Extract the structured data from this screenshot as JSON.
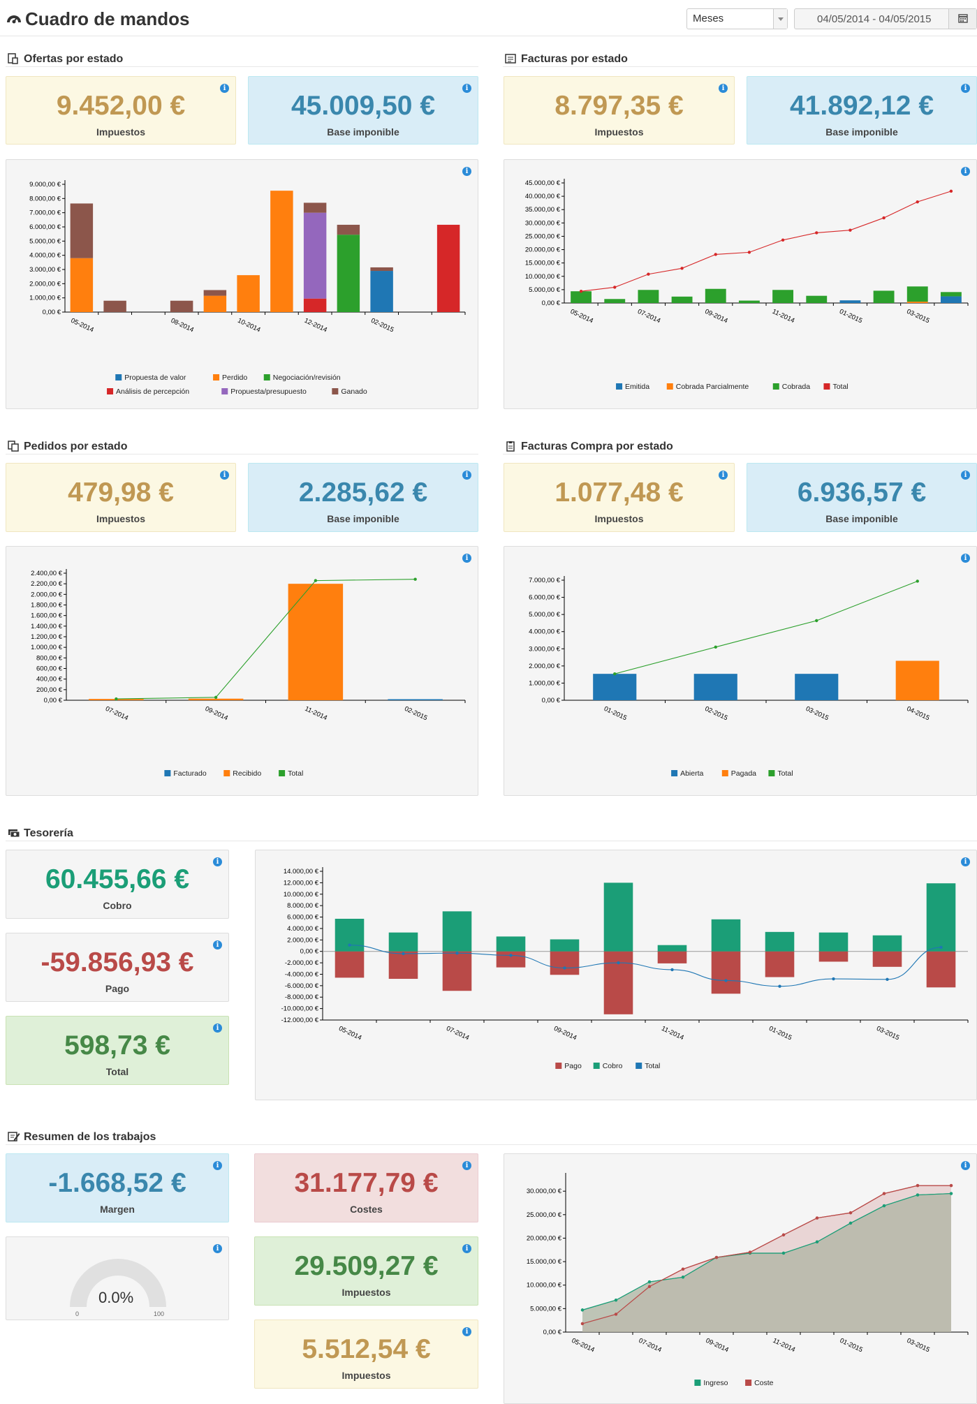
{
  "header": {
    "title": "Cuadro de mandos",
    "period": "Meses",
    "date_range": "04/05/2014 - 04/05/2015"
  },
  "info_glyph": "i",
  "sections": {
    "ofertas": "Ofertas por estado",
    "facturas": "Facturas por estado",
    "pedidos": "Pedidos por estado",
    "facturas_compra": "Facturas Compra por estado",
    "tesoreria": "Tesorería",
    "trabajos": "Resumen de los trabajos"
  },
  "kpis": {
    "ofertas_impuestos": {
      "value": "9.452,00 €",
      "label": "Impuestos"
    },
    "ofertas_base": {
      "value": "45.009,50 €",
      "label": "Base imponible"
    },
    "facturas_impuestos": {
      "value": "8.797,35 €",
      "label": "Impuestos"
    },
    "facturas_base": {
      "value": "41.892,12 €",
      "label": "Base imponible"
    },
    "pedidos_impuestos": {
      "value": "479,98 €",
      "label": "Impuestos"
    },
    "pedidos_base": {
      "value": "2.285,62 €",
      "label": "Base imponible"
    },
    "fcompra_impuestos": {
      "value": "1.077,48 €",
      "label": "Impuestos"
    },
    "fcompra_base": {
      "value": "6.936,57 €",
      "label": "Base imponible"
    },
    "cobro": {
      "value": "60.455,66 €",
      "label": "Cobro"
    },
    "pago": {
      "value": "-59.856,93 €",
      "label": "Pago"
    },
    "tes_total": {
      "value": "598,73 €",
      "label": "Total"
    },
    "margen": {
      "value": "-1.668,52 €",
      "label": "Margen"
    },
    "costes": {
      "value": "31.177,79 €",
      "label": "Costes"
    },
    "trab_impuestos1": {
      "value": "29.509,27 €",
      "label": "Impuestos"
    },
    "trab_impuestos2": {
      "value": "5.512,54 €",
      "label": "Impuestos"
    }
  },
  "gauge": {
    "value": "0.0%",
    "min": "0",
    "max": "100",
    "fraction": 0
  },
  "colors": {
    "blue": "#1f77b4",
    "orange": "#ff7f0e",
    "green": "#2ca02c",
    "red": "#d62728",
    "purple": "#9467bd",
    "brown": "#8c564b",
    "teal": "#1b9e77",
    "crimson": "#b94a48"
  },
  "chart_data": [
    {
      "id": "ofertas",
      "type": "bar",
      "stacked": true,
      "y_ticks": [
        "0,00 €",
        "1.000,00 €",
        "2.000,00 €",
        "3.000,00 €",
        "4.000,00 €",
        "5.000,00 €",
        "6.000,00 €",
        "7.000,00 €",
        "8.000,00 €",
        "9.000,00 €"
      ],
      "ylim": [
        0,
        9000
      ],
      "x_labels": [
        "05-2014",
        "08-2014",
        "10-2014",
        "12-2014",
        "02-2015"
      ],
      "x_label_index": [
        0,
        3,
        5,
        7,
        9
      ],
      "n_categories": 12,
      "series": [
        {
          "name": "Propuesta de valor",
          "color": "#1f77b4",
          "values": [
            0,
            0,
            0,
            0,
            0,
            0,
            0,
            0,
            0,
            2900,
            0,
            0
          ]
        },
        {
          "name": "Perdido",
          "color": "#ff7f0e",
          "values": [
            3800,
            0,
            0,
            0,
            1150,
            2600,
            8550,
            0,
            0,
            0,
            0,
            0
          ]
        },
        {
          "name": "Negociación/revisión",
          "color": "#2ca02c",
          "values": [
            0,
            0,
            0,
            0,
            0,
            0,
            0,
            0,
            5450,
            0,
            0,
            0
          ]
        },
        {
          "name": "Análisis de percepción",
          "color": "#d62728",
          "values": [
            0,
            0,
            0,
            0,
            0,
            0,
            0,
            950,
            0,
            0,
            0,
            6150
          ]
        },
        {
          "name": "Propuesta/presupuesto",
          "color": "#9467bd",
          "values": [
            0,
            0,
            0,
            0,
            0,
            0,
            0,
            6050,
            0,
            0,
            0,
            0
          ]
        },
        {
          "name": "Ganado",
          "color": "#8c564b",
          "values": [
            3850,
            800,
            0,
            800,
            400,
            0,
            0,
            700,
            700,
            250,
            0,
            0
          ]
        }
      ]
    },
    {
      "id": "facturas",
      "type": "bar+line",
      "y_ticks": [
        "0,00 €",
        "5.000,00 €",
        "10.000,00 €",
        "15.000,00 €",
        "20.000,00 €",
        "25.000,00 €",
        "30.000,00 €",
        "35.000,00 €",
        "40.000,00 €",
        "45.000,00 €"
      ],
      "ylim": [
        0,
        45000
      ],
      "x_labels": [
        "05-2014",
        "07-2014",
        "09-2014",
        "11-2014",
        "01-2015",
        "03-2015"
      ],
      "x_label_index": [
        0,
        2,
        4,
        6,
        8,
        10
      ],
      "n_categories": 12,
      "series": [
        {
          "name": "Emitida",
          "color": "#1f77b4",
          "values": [
            0,
            0,
            0,
            0,
            0,
            0,
            0,
            0,
            1000,
            0,
            0,
            2500
          ]
        },
        {
          "name": "Cobrada Parcialmente",
          "color": "#ff7f0e",
          "values": [
            0,
            0,
            0,
            0,
            0,
            0,
            0,
            0,
            0,
            0,
            500,
            0
          ]
        },
        {
          "name": "Cobrada",
          "color": "#2ca02c",
          "values": [
            4400,
            1500,
            4900,
            2400,
            5300,
            900,
            4900,
            2700,
            0,
            4600,
            5700,
            1600
          ]
        },
        {
          "name": "Total",
          "color": "#d62728",
          "line": true,
          "values": [
            4400,
            5900,
            10800,
            13000,
            18200,
            19000,
            23600,
            26300,
            27300,
            31900,
            37900,
            41900
          ]
        }
      ]
    },
    {
      "id": "pedidos",
      "type": "bar+line",
      "y_ticks": [
        "0,00 €",
        "200,00 €",
        "400,00 €",
        "600,00 €",
        "800,00 €",
        "1.000,00 €",
        "1.200,00 €",
        "1.400,00 €",
        "1.600,00 €",
        "1.800,00 €",
        "2.000,00 €",
        "2.200,00 €",
        "2.400,00 €"
      ],
      "ylim": [
        0,
        2400
      ],
      "x_labels": [
        "07-2014",
        "09-2014",
        "11-2014",
        "02-2015"
      ],
      "x_label_index": [
        0,
        1,
        2,
        3
      ],
      "n_categories": 4,
      "series": [
        {
          "name": "Facturado",
          "color": "#1f77b4",
          "values": [
            0,
            0,
            0,
            20
          ]
        },
        {
          "name": "Recibido",
          "color": "#ff7f0e",
          "values": [
            25,
            30,
            2200,
            0
          ]
        },
        {
          "name": "Total",
          "color": "#2ca02c",
          "line": true,
          "values": [
            25,
            55,
            2260,
            2285
          ]
        }
      ]
    },
    {
      "id": "facturas_compra",
      "type": "bar+line",
      "y_ticks": [
        "0,00 €",
        "1.000,00 €",
        "2.000,00 €",
        "3.000,00 €",
        "4.000,00 €",
        "5.000,00 €",
        "6.000,00 €",
        "7.000,00 €"
      ],
      "ylim": [
        0,
        7000
      ],
      "x_labels": [
        "01-2015",
        "02-2015",
        "03-2015",
        "04-2015"
      ],
      "x_label_index": [
        0,
        1,
        2,
        3
      ],
      "n_categories": 4,
      "series": [
        {
          "name": "Abierta",
          "color": "#1f77b4",
          "values": [
            1540,
            1540,
            1540,
            0
          ]
        },
        {
          "name": "Pagada",
          "color": "#ff7f0e",
          "values": [
            0,
            0,
            0,
            2300
          ]
        },
        {
          "name": "Total",
          "color": "#2ca02c",
          "line": true,
          "values": [
            1540,
            3100,
            4640,
            6940
          ]
        }
      ]
    },
    {
      "id": "tesoreria",
      "type": "bar+line",
      "y_ticks": [
        "-12.000,00 €",
        "-10.000,00 €",
        "-8.000,00 €",
        "-6.000,00 €",
        "-4.000,00 €",
        "-2.000,00 €",
        "0,00 €",
        "2.000,00 €",
        "4.000,00 €",
        "6.000,00 €",
        "8.000,00 €",
        "10.000,00 €",
        "12.000,00 €",
        "14.000,00 €"
      ],
      "ylim": [
        -12000,
        14000
      ],
      "x_labels": [
        "05-2014",
        "07-2014",
        "09-2014",
        "11-2014",
        "01-2015",
        "03-2015"
      ],
      "x_label_index": [
        0,
        2,
        4,
        6,
        8,
        10
      ],
      "n_categories": 12,
      "series": [
        {
          "name": "Pago",
          "color": "#b94a48",
          "values": [
            -4600,
            -4800,
            -6900,
            -2800,
            -4100,
            -11000,
            -2100,
            -7400,
            -4500,
            -1800,
            -2700,
            -6300
          ]
        },
        {
          "name": "Cobro",
          "color": "#1b9e77",
          "values": [
            5700,
            3300,
            7000,
            2600,
            2100,
            12000,
            1100,
            5600,
            3400,
            3300,
            2800,
            11900
          ]
        },
        {
          "name": "Total",
          "color": "#1f77b4",
          "line": true,
          "values": [
            1100,
            -400,
            -300,
            -700,
            -2900,
            -2000,
            -3200,
            -5100,
            -6100,
            -4800,
            -4900,
            700
          ]
        }
      ]
    },
    {
      "id": "trabajos",
      "type": "area",
      "y_ticks": [
        "0,00 €",
        "5.000,00 €",
        "10.000,00 €",
        "15.000,00 €",
        "20.000,00 €",
        "25.000,00 €",
        "30.000,00 €"
      ],
      "ylim": [
        0,
        33000
      ],
      "x_labels": [
        "05-2014",
        "07-2014",
        "09-2014",
        "11-2014",
        "01-2015",
        "03-2015"
      ],
      "x_label_index": [
        0,
        2,
        4,
        6,
        8,
        10
      ],
      "n_categories": 12,
      "series": [
        {
          "name": "Ingreso",
          "color": "#1b9e77",
          "values": [
            4700,
            6800,
            10700,
            11700,
            15900,
            16800,
            16800,
            19200,
            23200,
            26900,
            29200,
            29500
          ]
        },
        {
          "name": "Coste",
          "color": "#b94a48",
          "values": [
            1800,
            3800,
            9700,
            13400,
            15900,
            17000,
            20700,
            24300,
            25400,
            29500,
            31200,
            31200
          ]
        }
      ]
    }
  ]
}
